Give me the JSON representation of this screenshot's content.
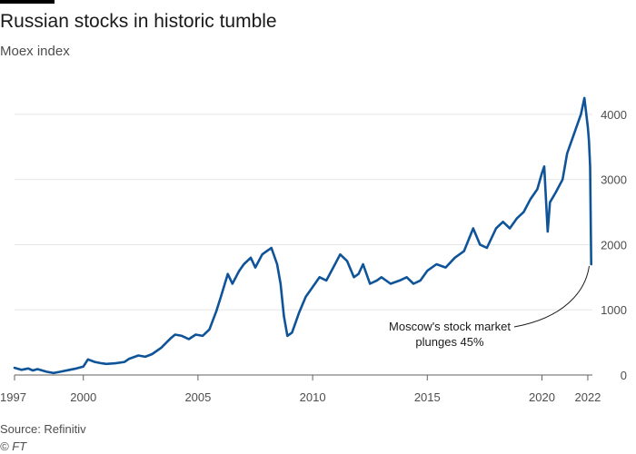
{
  "header": {
    "title": "Russian stocks in historic tumble",
    "subtitle": "Moex index"
  },
  "footer": {
    "source": "Source: Refinitiv",
    "credit": "© FT"
  },
  "colors": {
    "line": "#0f5499",
    "grid": "#e6e6e6",
    "axis": "#66605c",
    "text": "#4d4d4d"
  },
  "chart_data": {
    "type": "line",
    "title": "Russian stocks in historic tumble",
    "subtitle": "Moex index",
    "xlabel": "",
    "ylabel": "",
    "xlim": [
      1997.0,
      2022.2
    ],
    "ylim": [
      0,
      4500
    ],
    "grid": true,
    "x_ticks": [
      {
        "value": 1997,
        "label": "1997"
      },
      {
        "value": 2000,
        "label": "2000"
      },
      {
        "value": 2005,
        "label": "2005"
      },
      {
        "value": 2010,
        "label": "2010"
      },
      {
        "value": 2015,
        "label": "2015"
      },
      {
        "value": 2020,
        "label": "2020"
      },
      {
        "value": 2022,
        "label": "2022"
      }
    ],
    "y_ticks": [
      0,
      1000,
      2000,
      3000,
      4000
    ],
    "y_tick_labels": [
      "0",
      "1000",
      "2000",
      "3000",
      "4000"
    ],
    "series": [
      {
        "name": "",
        "points": [
          [
            1997.0,
            110
          ],
          [
            1997.3,
            80
          ],
          [
            1997.6,
            100
          ],
          [
            1997.8,
            70
          ],
          [
            1998.0,
            90
          ],
          [
            1998.4,
            50
          ],
          [
            1998.7,
            30
          ],
          [
            1999.0,
            50
          ],
          [
            1999.4,
            80
          ],
          [
            1999.7,
            100
          ],
          [
            2000.0,
            130
          ],
          [
            2000.2,
            240
          ],
          [
            2000.5,
            200
          ],
          [
            2000.8,
            180
          ],
          [
            2001.0,
            170
          ],
          [
            2001.4,
            180
          ],
          [
            2001.8,
            200
          ],
          [
            2002.0,
            250
          ],
          [
            2002.4,
            300
          ],
          [
            2002.7,
            280
          ],
          [
            2003.0,
            320
          ],
          [
            2003.4,
            420
          ],
          [
            2003.8,
            560
          ],
          [
            2004.0,
            620
          ],
          [
            2004.3,
            600
          ],
          [
            2004.6,
            550
          ],
          [
            2004.9,
            620
          ],
          [
            2005.2,
            600
          ],
          [
            2005.5,
            700
          ],
          [
            2005.8,
            980
          ],
          [
            2006.0,
            1200
          ],
          [
            2006.3,
            1550
          ],
          [
            2006.5,
            1400
          ],
          [
            2006.8,
            1600
          ],
          [
            2007.0,
            1700
          ],
          [
            2007.3,
            1800
          ],
          [
            2007.5,
            1650
          ],
          [
            2007.8,
            1850
          ],
          [
            2008.0,
            1900
          ],
          [
            2008.2,
            1950
          ],
          [
            2008.45,
            1700
          ],
          [
            2008.6,
            1400
          ],
          [
            2008.75,
            900
          ],
          [
            2008.9,
            600
          ],
          [
            2009.1,
            650
          ],
          [
            2009.4,
            950
          ],
          [
            2009.7,
            1200
          ],
          [
            2010.0,
            1350
          ],
          [
            2010.3,
            1500
          ],
          [
            2010.6,
            1450
          ],
          [
            2010.9,
            1650
          ],
          [
            2011.2,
            1850
          ],
          [
            2011.5,
            1750
          ],
          [
            2011.8,
            1500
          ],
          [
            2012.0,
            1550
          ],
          [
            2012.2,
            1700
          ],
          [
            2012.5,
            1400
          ],
          [
            2012.8,
            1450
          ],
          [
            2013.0,
            1500
          ],
          [
            2013.4,
            1400
          ],
          [
            2013.8,
            1450
          ],
          [
            2014.1,
            1500
          ],
          [
            2014.4,
            1400
          ],
          [
            2014.7,
            1450
          ],
          [
            2015.0,
            1600
          ],
          [
            2015.4,
            1700
          ],
          [
            2015.8,
            1650
          ],
          [
            2016.2,
            1800
          ],
          [
            2016.6,
            1900
          ],
          [
            2017.0,
            2250
          ],
          [
            2017.3,
            2000
          ],
          [
            2017.6,
            1950
          ],
          [
            2018.0,
            2250
          ],
          [
            2018.3,
            2350
          ],
          [
            2018.6,
            2250
          ],
          [
            2018.9,
            2400
          ],
          [
            2019.2,
            2500
          ],
          [
            2019.5,
            2700
          ],
          [
            2019.8,
            2850
          ],
          [
            2020.0,
            3100
          ],
          [
            2020.1,
            3200
          ],
          [
            2020.25,
            2200
          ],
          [
            2020.35,
            2650
          ],
          [
            2020.6,
            2800
          ],
          [
            2020.9,
            3000
          ],
          [
            2021.1,
            3400
          ],
          [
            2021.4,
            3700
          ],
          [
            2021.7,
            4000
          ],
          [
            2021.85,
            4250
          ],
          [
            2022.0,
            3800
          ],
          [
            2022.05,
            3600
          ],
          [
            2022.1,
            3200
          ],
          [
            2022.15,
            1700
          ]
        ]
      }
    ],
    "annotations": [
      {
        "lines": [
          "Moscow's stock market",
          "plunges 45%"
        ],
        "points_to": [
          2022.1,
          1700
        ]
      }
    ]
  }
}
